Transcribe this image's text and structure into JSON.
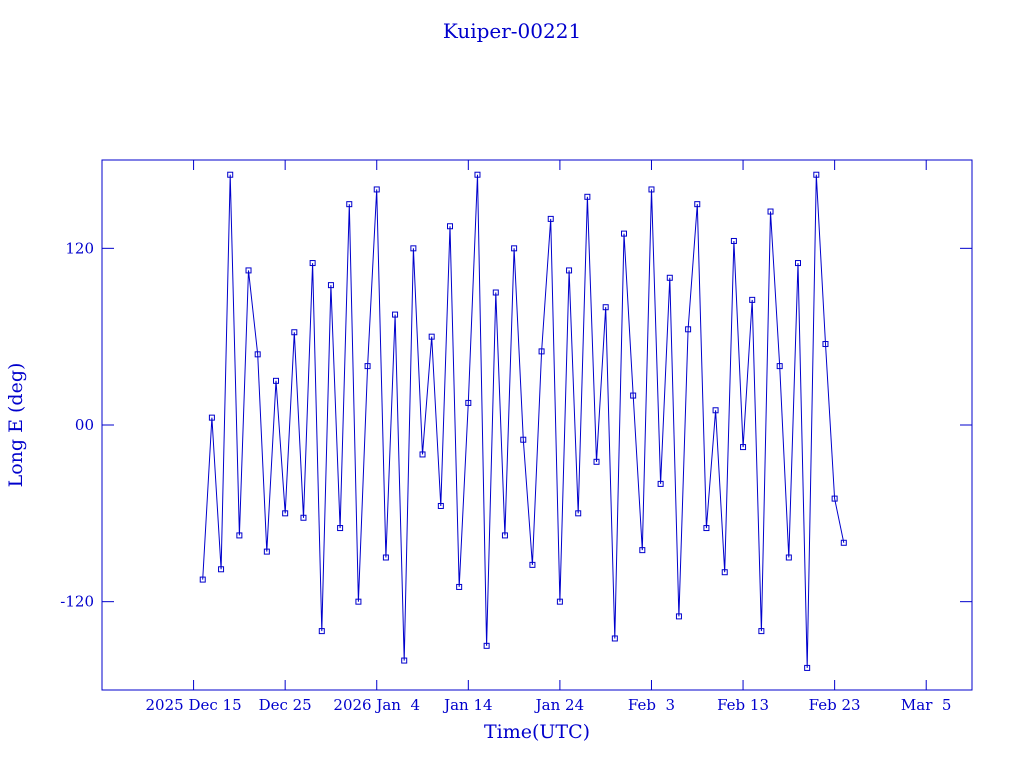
{
  "chart_data": {
    "type": "line",
    "title": "Kuiper-00221",
    "x_label": "Time(UTC)",
    "y_label": "Long E (deg)",
    "xlim": [
      "2025-12-05",
      "2026-03-10"
    ],
    "xticks": [
      {
        "value": "2025-12-15",
        "label": "2025 Dec 15"
      },
      {
        "value": "2025-12-25",
        "label": "Dec 25"
      },
      {
        "value": "2026-01-04",
        "label": "2026 Jan  4"
      },
      {
        "value": "2026-01-14",
        "label": "Jan 14"
      },
      {
        "value": "2026-01-24",
        "label": "Jan 24"
      },
      {
        "value": "2026-02-03",
        "label": "Feb  3"
      },
      {
        "value": "2026-02-13",
        "label": "Feb 13"
      },
      {
        "value": "2026-02-23",
        "label": "Feb 23"
      },
      {
        "value": "2026-03-05",
        "label": "Mar  5"
      }
    ],
    "ylim": [
      -180,
      180
    ],
    "yticks": [
      -120,
      {
        "value": 0,
        "label": "00"
      },
      120
    ],
    "series": [
      {
        "name": "Long E",
        "color": "#0000cc",
        "x": [
          "2025-12-16",
          "2025-12-17",
          "2025-12-18",
          "2025-12-19",
          "2025-12-20",
          "2025-12-21",
          "2025-12-22",
          "2025-12-23",
          "2025-12-24",
          "2025-12-25",
          "2025-12-26",
          "2025-12-27",
          "2025-12-28",
          "2025-12-29",
          "2025-12-30",
          "2025-12-31",
          "2026-01-01",
          "2026-01-02",
          "2026-01-03",
          "2026-01-04",
          "2026-01-05",
          "2026-01-06",
          "2026-01-07",
          "2026-01-08",
          "2026-01-09",
          "2026-01-10",
          "2026-01-11",
          "2026-01-12",
          "2026-01-13",
          "2026-01-14",
          "2026-01-15",
          "2026-01-16",
          "2026-01-17",
          "2026-01-18",
          "2026-01-19",
          "2026-01-20",
          "2026-01-21",
          "2026-01-22",
          "2026-01-23",
          "2026-01-24",
          "2026-01-25",
          "2026-01-26",
          "2026-01-27",
          "2026-01-28",
          "2026-01-29",
          "2026-01-30",
          "2026-01-31",
          "2026-02-01",
          "2026-02-02",
          "2026-02-03",
          "2026-02-04",
          "2026-02-05",
          "2026-02-06",
          "2026-02-07",
          "2026-02-08",
          "2026-02-09",
          "2026-02-10",
          "2026-02-11",
          "2026-02-12",
          "2026-02-13",
          "2026-02-14",
          "2026-02-15",
          "2026-02-16",
          "2026-02-17",
          "2026-02-18",
          "2026-02-19",
          "2026-02-20",
          "2026-02-21",
          "2026-02-22",
          "2026-02-23",
          "2026-02-24"
        ],
        "values": [
          -105,
          5,
          -98,
          170,
          -75,
          105,
          48,
          -86,
          30,
          -60,
          63,
          -63,
          110,
          -140,
          95,
          -70,
          150,
          -120,
          40,
          160,
          -90,
          75,
          -160,
          120,
          -20,
          60,
          -55,
          135,
          -110,
          15,
          170,
          -150,
          90,
          -75,
          120,
          -10,
          -95,
          50,
          140,
          -120,
          105,
          -60,
          155,
          -25,
          80,
          -145,
          130,
          20,
          -85,
          160,
          -40,
          100,
          -130,
          65,
          150,
          -70,
          10,
          -100,
          125,
          -15,
          85,
          -140,
          145,
          40,
          -90,
          110,
          -165,
          170,
          55,
          -50,
          -80
        ]
      }
    ]
  }
}
